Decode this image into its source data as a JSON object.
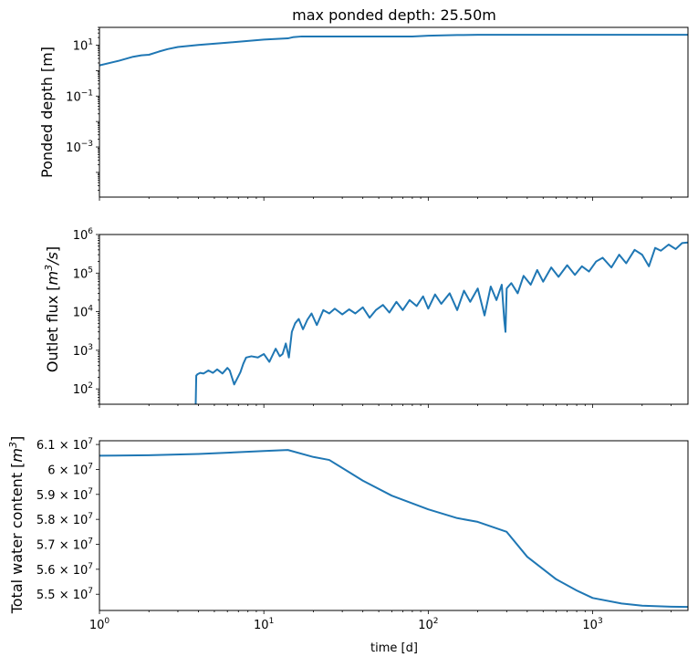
{
  "chart_data": [
    {
      "type": "line",
      "title": "max ponded depth: 25.50m",
      "ylabel": "Ponded depth [m]",
      "xscale": "log",
      "yscale": "log",
      "xlim": [
        1,
        3800
      ],
      "ylim": [
        1.07e-05,
        50
      ],
      "yticks": [
        {
          "value": 10,
          "label": "10",
          "exp": "1"
        },
        {
          "value": 0.1,
          "label": "10",
          "exp": "−1"
        },
        {
          "value": 0.001,
          "label": "10",
          "exp": "−3"
        }
      ],
      "color": "#1f77b4",
      "x": [
        1,
        1.3,
        1.6,
        1.8,
        2.0,
        2.3,
        2.6,
        3.0,
        4.0,
        6.0,
        10,
        14,
        15,
        17,
        20,
        30,
        50,
        80,
        100,
        150,
        200,
        500,
        1000,
        2000,
        3800
      ],
      "y": [
        1.6,
        2.4,
        3.5,
        4.0,
        4.2,
        5.6,
        7.0,
        8.5,
        10.2,
        12.5,
        16.5,
        18.5,
        20.5,
        22.0,
        22.0,
        22.0,
        22.0,
        22.0,
        23.5,
        25.0,
        25.5,
        25.5,
        25.5,
        25.5,
        25.5
      ]
    },
    {
      "type": "line",
      "ylabel": "Outlet flux [m³/s]",
      "xscale": "log",
      "yscale": "log",
      "xlim": [
        1,
        3800
      ],
      "ylim": [
        40,
        1000000
      ],
      "yticks": [
        {
          "value": 100,
          "label": "10",
          "exp": "2"
        },
        {
          "value": 1000,
          "label": "10",
          "exp": "3"
        },
        {
          "value": 10000,
          "label": "10",
          "exp": "4"
        },
        {
          "value": 100000,
          "label": "10",
          "exp": "5"
        },
        {
          "value": 1000000,
          "label": "10",
          "exp": "6"
        }
      ],
      "color": "#1f77b4",
      "x": [
        3.85,
        3.88,
        3.95,
        4.1,
        4.3,
        4.6,
        4.9,
        5.2,
        5.6,
        6.0,
        6.2,
        6.6,
        7.2,
        7.5,
        7.8,
        8.4,
        9.2,
        10.0,
        10.8,
        11.8,
        12.5,
        13.0,
        13.6,
        14.2,
        14.8,
        15.5,
        16.3,
        17.3,
        18.4,
        19.5,
        21.0,
        23.0,
        25.0,
        27.0,
        30.0,
        33.0,
        36.0,
        40.0,
        44.0,
        48.0,
        53.0,
        58.0,
        64.0,
        70.0,
        77.0,
        85.0,
        93.0,
        100,
        110,
        120,
        135,
        150,
        165,
        180,
        200,
        220,
        240,
        260,
        280,
        290,
        295,
        300,
        320,
        350,
        380,
        420,
        460,
        500,
        560,
        620,
        700,
        780,
        860,
        950,
        1050,
        1150,
        1300,
        1450,
        1600,
        1800,
        2000,
        2200,
        2400,
        2600,
        2900,
        3200,
        3500,
        3800
      ],
      "y": [
        40,
        220,
        240,
        260,
        250,
        300,
        260,
        320,
        250,
        350,
        300,
        130,
        270,
        450,
        650,
        700,
        650,
        800,
        500,
        1100,
        700,
        800,
        1500,
        650,
        3000,
        5000,
        6500,
        3500,
        6200,
        9000,
        4500,
        11000,
        9000,
        12000,
        8500,
        11500,
        9000,
        13000,
        7000,
        11000,
        15000,
        9500,
        18000,
        11000,
        20000,
        14000,
        25000,
        12000,
        28000,
        16000,
        30000,
        11000,
        35000,
        18000,
        40000,
        8000,
        45000,
        20000,
        50000,
        6000,
        3000,
        40000,
        55000,
        30000,
        85000,
        50000,
        120000,
        60000,
        140000,
        80000,
        160000,
        90000,
        150000,
        110000,
        200000,
        250000,
        140000,
        300000,
        180000,
        400000,
        300000,
        150000,
        450000,
        380000,
        550000,
        420000,
        600000,
        620000
      ]
    },
    {
      "type": "line",
      "ylabel": "Total water content [m³]",
      "xlabel": "time [d]",
      "xscale": "log",
      "yscale": "linear",
      "xlim": [
        1,
        3800
      ],
      "ylim": [
        54350000,
        61150000
      ],
      "yticks": [
        {
          "value": 61000000,
          "label": "6.1 × 10",
          "exp": "7"
        },
        {
          "value": 60000000,
          "label": "6 × 10",
          "exp": "7"
        },
        {
          "value": 59000000,
          "label": "5.9 × 10",
          "exp": "7"
        },
        {
          "value": 58000000,
          "label": "5.8 × 10",
          "exp": "7"
        },
        {
          "value": 57000000,
          "label": "5.7 × 10",
          "exp": "7"
        },
        {
          "value": 56000000,
          "label": "5.6 × 10",
          "exp": "7"
        },
        {
          "value": 55000000,
          "label": "5.5 × 10",
          "exp": "7"
        }
      ],
      "xticks": [
        {
          "value": 1,
          "label": "10",
          "exp": "0"
        },
        {
          "value": 10,
          "label": "10",
          "exp": "1"
        },
        {
          "value": 100,
          "label": "10",
          "exp": "2"
        },
        {
          "value": 1000,
          "label": "10",
          "exp": "3"
        }
      ],
      "color": "#1f77b4",
      "x": [
        1,
        2,
        4,
        6,
        10,
        14,
        20,
        25,
        40,
        60,
        100,
        150,
        200,
        300,
        400,
        600,
        800,
        1000,
        1500,
        2000,
        3000,
        3800
      ],
      "y": [
        60550000,
        60570000,
        60620000,
        60670000,
        60740000,
        60780000,
        60500000,
        60380000,
        59550000,
        58950000,
        58400000,
        58050000,
        57900000,
        57500000,
        56500000,
        55600000,
        55150000,
        54850000,
        54630000,
        54540000,
        54500000,
        54490000
      ]
    }
  ]
}
